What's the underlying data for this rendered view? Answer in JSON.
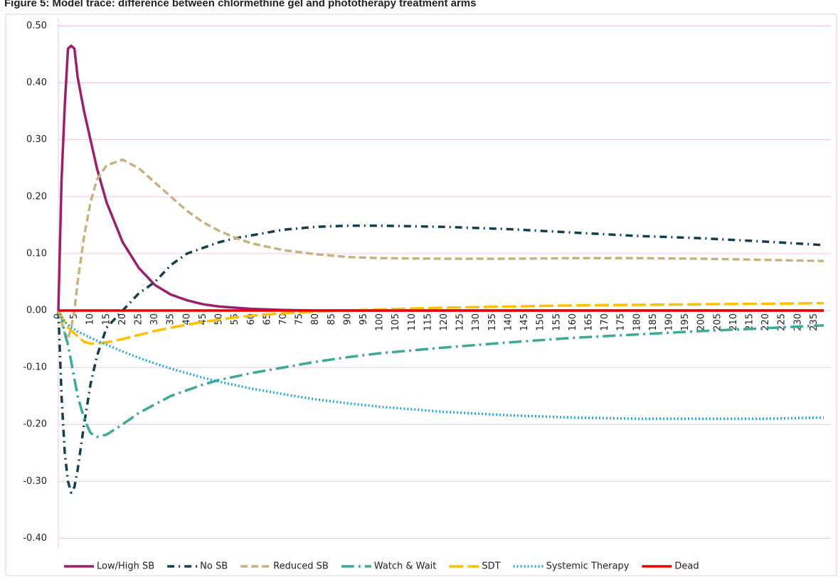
{
  "chart_data": {
    "type": "line",
    "title": "Figure 5: Model trace: difference between chlormethine gel and phototherapy treatment arms",
    "x": [
      0,
      1,
      2,
      3,
      4,
      5,
      6,
      8,
      10,
      12,
      15,
      20,
      25,
      30,
      35,
      40,
      45,
      50,
      55,
      60,
      70,
      80,
      90,
      100,
      120,
      140,
      160,
      180,
      200,
      220,
      238
    ],
    "series": [
      {
        "name": "Low/High SB",
        "color": "#9c1f6b",
        "style": "solid",
        "values": [
          0,
          0.23,
          0.36,
          0.46,
          0.465,
          0.46,
          0.41,
          0.35,
          0.3,
          0.25,
          0.19,
          0.12,
          0.075,
          0.045,
          0.028,
          0.018,
          0.011,
          0.007,
          0.005,
          0.003,
          0.001,
          0,
          0,
          0,
          0,
          0,
          0,
          0,
          0,
          0,
          0
        ]
      },
      {
        "name": "No SB",
        "color": "#143f4f",
        "style": "dash-dot",
        "values": [
          0,
          -0.15,
          -0.25,
          -0.3,
          -0.32,
          -0.31,
          -0.28,
          -0.2,
          -0.13,
          -0.08,
          -0.03,
          0,
          0.03,
          0.05,
          0.08,
          0.1,
          0.11,
          0.12,
          0.127,
          0.132,
          0.142,
          0.147,
          0.149,
          0.149,
          0.147,
          0.143,
          0.137,
          0.131,
          0.127,
          0.121,
          0.115
        ]
      },
      {
        "name": "Reduced SB",
        "color": "#c8b37f",
        "style": "dashed",
        "values": [
          0,
          -0.02,
          -0.04,
          -0.05,
          -0.03,
          0,
          0.05,
          0.13,
          0.19,
          0.23,
          0.255,
          0.265,
          0.25,
          0.225,
          0.2,
          0.175,
          0.155,
          0.14,
          0.128,
          0.118,
          0.106,
          0.099,
          0.094,
          0.092,
          0.091,
          0.091,
          0.092,
          0.092,
          0.091,
          0.089,
          0.087
        ]
      },
      {
        "name": "Watch & Wait",
        "color": "#3aab96",
        "style": "long-dash-dot",
        "values": [
          0,
          -0.01,
          -0.04,
          -0.06,
          -0.09,
          -0.12,
          -0.15,
          -0.19,
          -0.215,
          -0.222,
          -0.218,
          -0.2,
          -0.18,
          -0.165,
          -0.15,
          -0.14,
          -0.13,
          -0.122,
          -0.116,
          -0.11,
          -0.1,
          -0.09,
          -0.082,
          -0.075,
          -0.065,
          -0.056,
          -0.048,
          -0.042,
          -0.036,
          -0.031,
          -0.026
        ]
      },
      {
        "name": "SDT",
        "color": "#ffc000",
        "style": "long-dash",
        "values": [
          0,
          -0.01,
          -0.02,
          -0.03,
          -0.035,
          -0.04,
          -0.045,
          -0.055,
          -0.058,
          -0.058,
          -0.056,
          -0.05,
          -0.043,
          -0.036,
          -0.03,
          -0.025,
          -0.02,
          -0.016,
          -0.012,
          -0.009,
          -0.005,
          -0.002,
          0,
          0.002,
          0.005,
          0.007,
          0.009,
          0.01,
          0.011,
          0.012,
          0.013
        ]
      },
      {
        "name": "Systemic Therapy",
        "color": "#1fa9e8",
        "style": "dotted",
        "values": [
          0,
          -0.012,
          -0.02,
          -0.025,
          -0.03,
          -0.033,
          -0.037,
          -0.042,
          -0.048,
          -0.053,
          -0.06,
          -0.072,
          -0.083,
          -0.093,
          -0.102,
          -0.11,
          -0.118,
          -0.125,
          -0.131,
          -0.137,
          -0.147,
          -0.156,
          -0.163,
          -0.169,
          -0.178,
          -0.184,
          -0.188,
          -0.19,
          -0.19,
          -0.19,
          -0.188
        ]
      },
      {
        "name": "Dead",
        "color": "#ee0000",
        "style": "solid",
        "values": [
          0,
          0,
          0,
          0,
          0,
          0,
          0,
          0,
          0,
          0,
          0,
          0,
          0,
          0,
          0,
          0,
          0,
          0,
          0,
          0,
          0,
          0,
          0,
          0,
          0,
          0,
          0,
          0,
          0,
          0,
          0
        ]
      }
    ],
    "xlim": [
      0,
      238
    ],
    "xticks": [
      0,
      5,
      10,
      15,
      20,
      25,
      30,
      35,
      40,
      45,
      50,
      55,
      60,
      65,
      70,
      75,
      80,
      85,
      90,
      95,
      100,
      105,
      110,
      115,
      120,
      125,
      130,
      135,
      140,
      145,
      150,
      155,
      160,
      165,
      170,
      175,
      180,
      185,
      190,
      195,
      200,
      205,
      210,
      215,
      220,
      225,
      230,
      235
    ],
    "ylim": [
      -0.45,
      0.52
    ],
    "yticks": [
      {
        "value": 0.5,
        "label": "0.50"
      },
      {
        "value": 0.4,
        "label": "0.40"
      },
      {
        "value": 0.3,
        "label": "0.30"
      },
      {
        "value": 0.2,
        "label": "0.20"
      },
      {
        "value": 0.1,
        "label": "0.10"
      },
      {
        "value": 0,
        "label": "0.00"
      },
      {
        "value": -0.1,
        "label": "-0.10"
      },
      {
        "value": -0.2,
        "label": "-0.20"
      },
      {
        "value": -0.3,
        "label": "-0.30"
      },
      {
        "value": -0.4,
        "label": "-0.40"
      }
    ],
    "grid": true,
    "legend": "bottom"
  }
}
